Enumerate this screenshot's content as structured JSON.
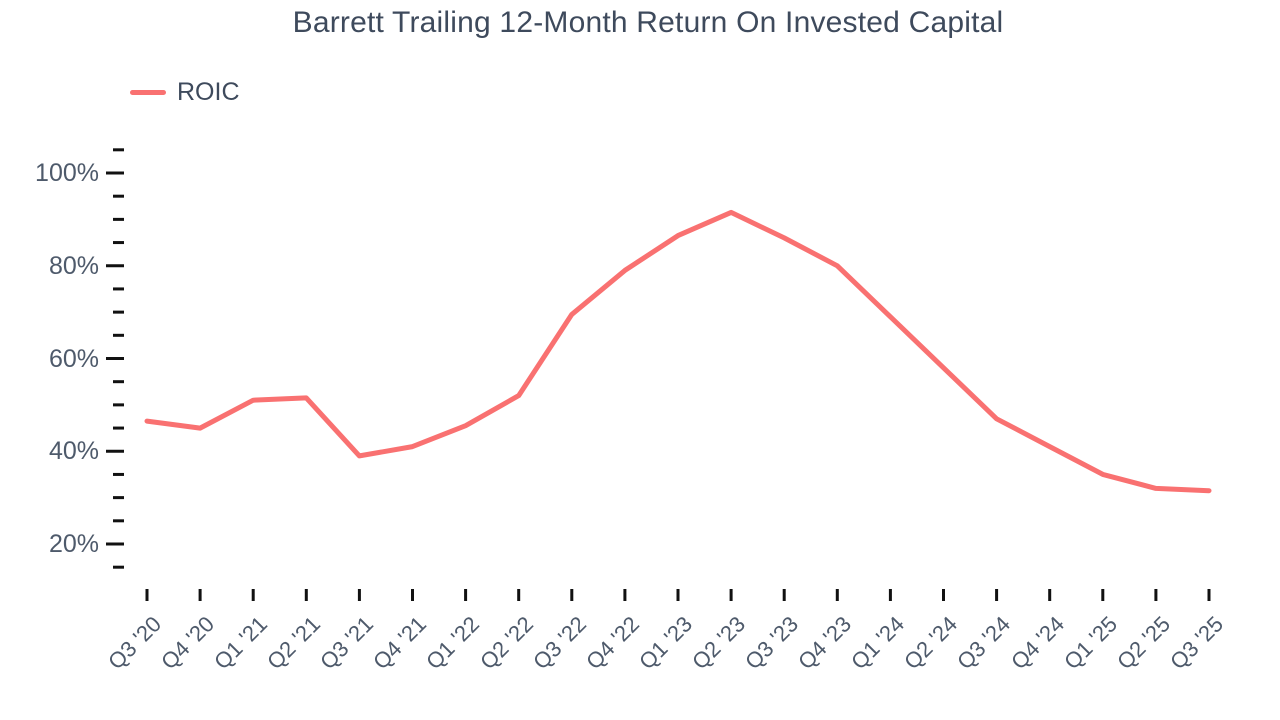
{
  "chart_data": {
    "type": "line",
    "title": "Barrett Trailing 12-Month Return On Invested Capital",
    "categories": [
      "Q3 '20",
      "Q4 '20",
      "Q1 '21",
      "Q2 '21",
      "Q3 '21",
      "Q4 '21",
      "Q1 '22",
      "Q2 '22",
      "Q3 '22",
      "Q4 '22",
      "Q1 '23",
      "Q2 '23",
      "Q3 '23",
      "Q4 '23",
      "Q1 '24",
      "Q2 '24",
      "Q3 '24",
      "Q4 '24",
      "Q1 '25",
      "Q2 '25",
      "Q3 '25"
    ],
    "series": [
      {
        "name": "ROIC",
        "color": "#F97171",
        "values": [
          46.5,
          45,
          51,
          51.5,
          39,
          41,
          45.5,
          52,
          69.5,
          79,
          86.5,
          91.5,
          86,
          80,
          69,
          58,
          47,
          41,
          35,
          32,
          31.5
        ]
      }
    ],
    "legend": [
      {
        "label": "ROIC",
        "color": "#F97171"
      }
    ],
    "legend_position": "top-left",
    "unit": "%",
    "xlabel": "",
    "ylabel": "",
    "y_axis": {
      "min": 15,
      "max": 105,
      "major_ticks": [
        20,
        40,
        60,
        80,
        100
      ],
      "minor_tick_step": 5,
      "tick_label_format": "{v}%"
    },
    "x_axis": {
      "tick_label_rotation_deg": -45
    },
    "grid": false,
    "colors": {
      "title": "#3E4A5C",
      "axis_labels": "#4E5A6B",
      "ticks": "#111111",
      "background": "#FFFFFF"
    }
  }
}
